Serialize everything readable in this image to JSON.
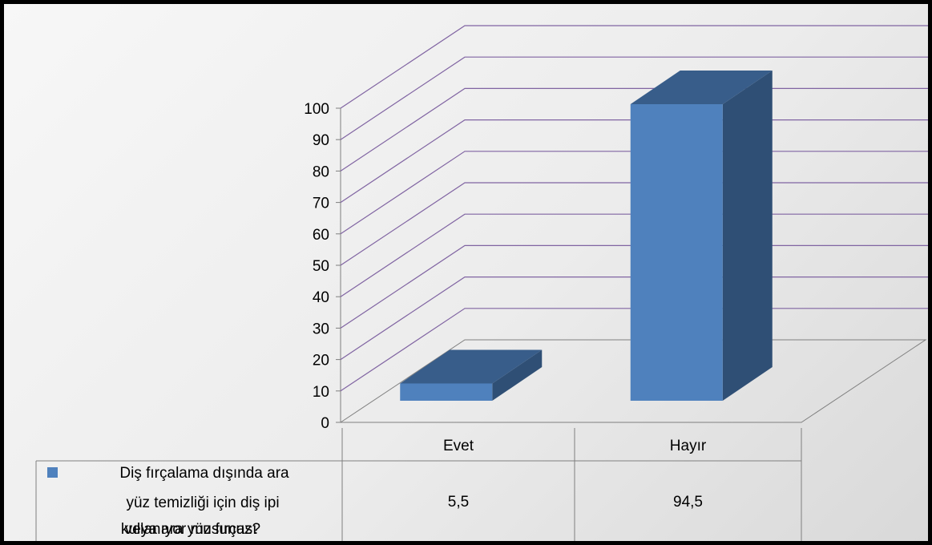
{
  "chart_data": {
    "type": "bar",
    "categories": [
      "Evet",
      "Hayır"
    ],
    "series": [
      {
        "name": "Diş fırçalama dışında ara yüz temizliği için diş ipi veya ara yüz fırçası kullanıyor musunuz?",
        "values": [
          5.5,
          94.5
        ],
        "value_labels": [
          "5,5",
          "94,5"
        ],
        "color": "#4f81bd"
      }
    ],
    "ylim": [
      0,
      100
    ],
    "yticks": [
      0,
      10,
      20,
      30,
      40,
      50,
      60,
      70,
      80,
      90,
      100
    ],
    "grid": true,
    "gridline_color": "#8064a2",
    "three_d": true,
    "data_table": true,
    "legend": "data-table-left",
    "title": "",
    "xlabel": "",
    "ylabel": ""
  }
}
